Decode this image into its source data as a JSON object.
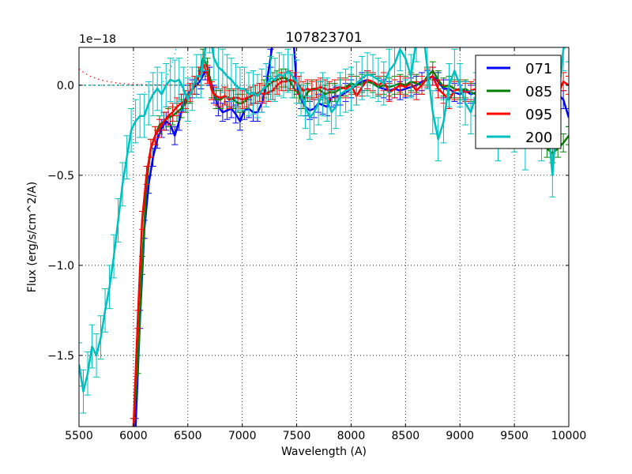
{
  "chart_data": {
    "type": "line",
    "title": "107823701",
    "xlabel": "Wavelength (A)",
    "ylabel": "Flux (erg/s/cm^2/A)",
    "y_offset_label": "1e−18",
    "xlim": [
      5500,
      10000
    ],
    "ylim": [
      -1.895,
      0.21
    ],
    "y_scale_factor": 1e-18,
    "grid": true,
    "legend_position": "upper right",
    "x_ticks": [
      5500,
      6000,
      6500,
      7000,
      7500,
      8000,
      8500,
      9000,
      9500,
      10000
    ],
    "x_tick_labels": [
      "5500",
      "6000",
      "6500",
      "7000",
      "7500",
      "8000",
      "8500",
      "9000",
      "9500",
      "10000"
    ],
    "y_ticks": [
      0.0,
      -0.5,
      -1.0,
      -1.5
    ],
    "y_tick_labels": [
      "0.0",
      "−0.5",
      "−1.0",
      "−1.5"
    ],
    "series": [
      {
        "name": "071",
        "color": "#0000ff",
        "x": [
          6020,
          6060,
          6100,
          6140,
          6180,
          6220,
          6260,
          6300,
          6340,
          6380,
          6420,
          6460,
          6500,
          6540,
          6580,
          6620,
          6660,
          6700,
          6740,
          6780,
          6820,
          6860,
          6900,
          6940,
          6980,
          7020,
          7060,
          7100,
          7140,
          7180,
          7220,
          7260,
          7300,
          7340,
          7380,
          7420,
          7460,
          7500,
          7540,
          7580,
          7620,
          7660,
          7700,
          7740,
          7780,
          7820,
          7860,
          7900,
          7950,
          8000,
          8050,
          8100,
          8150,
          8200,
          8250,
          8300,
          8350,
          8400,
          8450,
          8500,
          8550,
          8600,
          8650,
          8700,
          8750,
          8800,
          8850,
          8900,
          8950,
          9000,
          9050,
          9100,
          9150,
          9200,
          9250,
          9300,
          9350,
          9400,
          9450,
          9500,
          9550,
          9600,
          9650,
          9700,
          9750,
          9800,
          9850,
          9900,
          9950,
          10000
        ],
        "y": [
          -1.9,
          -1.3,
          -0.8,
          -0.55,
          -0.4,
          -0.3,
          -0.24,
          -0.2,
          -0.22,
          -0.28,
          -0.2,
          -0.1,
          -0.05,
          -0.02,
          0.0,
          0.03,
          0.08,
          0.05,
          -0.05,
          -0.12,
          -0.15,
          -0.14,
          -0.13,
          -0.16,
          -0.2,
          -0.14,
          -0.13,
          -0.15,
          -0.15,
          -0.1,
          0.0,
          0.15,
          0.35,
          0.6,
          0.75,
          0.6,
          0.35,
          0.0,
          -0.08,
          -0.12,
          -0.14,
          -0.13,
          -0.1,
          -0.11,
          -0.12,
          -0.07,
          -0.06,
          -0.06,
          -0.04,
          -0.02,
          0.0,
          0.02,
          0.03,
          0.01,
          -0.01,
          -0.02,
          -0.03,
          -0.02,
          -0.03,
          -0.02,
          -0.01,
          0.0,
          0.02,
          0.03,
          0.05,
          0.02,
          -0.02,
          -0.02,
          -0.04,
          -0.05,
          -0.03,
          -0.05,
          -0.04,
          -0.05,
          -0.06,
          -0.05,
          -0.08,
          -0.1,
          -0.06,
          -0.08,
          -0.05,
          -0.1,
          -0.07,
          -0.12,
          -0.05,
          -0.08,
          -0.03,
          -0.05,
          -0.08,
          -0.18
        ],
        "yerr": 0.05
      },
      {
        "name": "085",
        "color": "#008000",
        "x": [
          6000,
          6040,
          6080,
          6120,
          6160,
          6200,
          6240,
          6280,
          6320,
          6360,
          6400,
          6440,
          6480,
          6520,
          6560,
          6600,
          6640,
          6680,
          6720,
          6760,
          6800,
          6840,
          6880,
          6920,
          6960,
          7000,
          7040,
          7080,
          7120,
          7160,
          7200,
          7240,
          7280,
          7320,
          7360,
          7400,
          7440,
          7480,
          7520,
          7560,
          7600,
          7640,
          7680,
          7720,
          7760,
          7800,
          7850,
          7900,
          7950,
          8000,
          8050,
          8100,
          8150,
          8200,
          8250,
          8300,
          8350,
          8400,
          8450,
          8500,
          8550,
          8600,
          8650,
          8700,
          8750,
          8800,
          8850,
          8900,
          8950,
          9000,
          9050,
          9100,
          9150,
          9200,
          9250,
          9300,
          9350,
          9400,
          9450,
          9500,
          9550,
          9600,
          9650,
          9700,
          9750,
          9800,
          9850,
          9900,
          9950,
          10000
        ],
        "y": [
          -1.9,
          -1.55,
          -1.0,
          -0.55,
          -0.35,
          -0.28,
          -0.22,
          -0.2,
          -0.18,
          -0.17,
          -0.15,
          -0.13,
          -0.1,
          -0.05,
          0.0,
          0.05,
          0.15,
          0.1,
          -0.02,
          -0.08,
          -0.08,
          -0.06,
          -0.07,
          -0.08,
          -0.1,
          -0.1,
          -0.08,
          -0.06,
          -0.05,
          -0.04,
          -0.02,
          0.0,
          0.02,
          0.03,
          0.04,
          0.04,
          0.02,
          -0.02,
          -0.05,
          -0.08,
          -0.04,
          -0.02,
          -0.02,
          -0.03,
          -0.05,
          -0.04,
          -0.04,
          -0.02,
          -0.01,
          0.01,
          0.0,
          0.01,
          0.02,
          0.01,
          -0.01,
          0.0,
          -0.01,
          0.0,
          0.01,
          0.0,
          0.02,
          0.01,
          0.0,
          0.05,
          0.08,
          0.03,
          -0.01,
          0.0,
          -0.02,
          -0.03,
          -0.02,
          -0.04,
          -0.05,
          -0.05,
          -0.06,
          -0.04,
          -0.07,
          -0.08,
          -0.1,
          -0.12,
          -0.1,
          -0.15,
          -0.2,
          -0.22,
          -0.3,
          -0.35,
          -0.38,
          -0.35,
          -0.32,
          -0.28
        ],
        "yerr": 0.05
      },
      {
        "name": "095",
        "color": "#ff0000",
        "x": [
          6000,
          6040,
          6080,
          6120,
          6160,
          6200,
          6240,
          6280,
          6320,
          6360,
          6400,
          6440,
          6480,
          6520,
          6560,
          6600,
          6640,
          6680,
          6720,
          6760,
          6800,
          6840,
          6880,
          6920,
          6960,
          7000,
          7040,
          7080,
          7120,
          7160,
          7200,
          7240,
          7280,
          7320,
          7360,
          7400,
          7440,
          7480,
          7520,
          7560,
          7600,
          7640,
          7680,
          7720,
          7760,
          7800,
          7850,
          7900,
          7950,
          8000,
          8050,
          8100,
          8150,
          8200,
          8250,
          8300,
          8350,
          8400,
          8450,
          8500,
          8550,
          8600,
          8650,
          8700,
          8750,
          8800,
          8850,
          8900,
          8950,
          9000,
          9050,
          9100,
          9150,
          9200,
          9250,
          9300,
          9350,
          9400,
          9450,
          9500,
          9550,
          9600,
          9650,
          9700,
          9750,
          9800,
          9850,
          9900,
          9950,
          10000
        ],
        "y": [
          -1.9,
          -1.3,
          -0.75,
          -0.5,
          -0.35,
          -0.28,
          -0.24,
          -0.2,
          -0.17,
          -0.15,
          -0.12,
          -0.1,
          -0.08,
          -0.04,
          0.0,
          0.05,
          0.12,
          0.06,
          -0.03,
          -0.06,
          -0.07,
          -0.06,
          -0.08,
          -0.07,
          -0.07,
          -0.08,
          -0.07,
          -0.06,
          -0.05,
          -0.04,
          -0.05,
          -0.04,
          -0.03,
          0.0,
          0.02,
          0.02,
          0.03,
          0.02,
          0.0,
          -0.03,
          -0.02,
          -0.03,
          -0.02,
          -0.01,
          -0.02,
          -0.03,
          -0.02,
          -0.01,
          -0.02,
          0.0,
          -0.06,
          -0.01,
          0.03,
          0.02,
          0.0,
          0.02,
          -0.04,
          -0.02,
          0.0,
          -0.01,
          0.01,
          -0.03,
          0.0,
          0.04,
          0.05,
          -0.02,
          -0.05,
          -0.08,
          -0.03,
          -0.02,
          -0.04,
          -0.03,
          -0.02,
          -0.05,
          -0.06,
          -0.03,
          -0.05,
          -0.02,
          -0.03,
          -0.04,
          -0.05,
          -0.06,
          -0.04,
          -0.08,
          -0.05,
          -0.07,
          -0.04,
          -0.05,
          0.02,
          0.0
        ],
        "yerr": 0.05
      },
      {
        "name": "200",
        "color": "#00bfbf",
        "x": [
          5500,
          5540,
          5580,
          5620,
          5660,
          5700,
          5740,
          5780,
          5820,
          5860,
          5900,
          5940,
          5980,
          6020,
          6060,
          6100,
          6140,
          6180,
          6220,
          6260,
          6300,
          6340,
          6380,
          6420,
          6460,
          6500,
          6540,
          6580,
          6620,
          6660,
          6700,
          6740,
          6780,
          6820,
          6860,
          6900,
          6940,
          6980,
          7020,
          7060,
          7100,
          7140,
          7180,
          7220,
          7260,
          7300,
          7340,
          7380,
          7420,
          7460,
          7500,
          7540,
          7580,
          7620,
          7660,
          7700,
          7740,
          7780,
          7820,
          7860,
          7900,
          7950,
          8000,
          8050,
          8100,
          8150,
          8200,
          8250,
          8300,
          8350,
          8400,
          8450,
          8500,
          8550,
          8600,
          8650,
          8700,
          8750,
          8800,
          8850,
          8900,
          8950,
          9000,
          9050,
          9100,
          9150,
          9200,
          9250,
          9300,
          9350,
          9400,
          9450,
          9500,
          9550,
          9600,
          9650,
          9700,
          9750,
          9800,
          9850,
          9900,
          9950,
          10000
        ],
        "y": [
          -1.55,
          -1.7,
          -1.6,
          -1.45,
          -1.5,
          -1.4,
          -1.25,
          -1.12,
          -0.95,
          -0.75,
          -0.55,
          -0.4,
          -0.25,
          -0.2,
          -0.17,
          -0.17,
          -0.1,
          -0.05,
          -0.02,
          -0.05,
          0.0,
          0.03,
          0.02,
          0.03,
          -0.02,
          -0.08,
          -0.02,
          0.05,
          0.05,
          0.2,
          0.3,
          0.15,
          0.1,
          0.08,
          0.05,
          0.03,
          0.0,
          -0.02,
          -0.02,
          -0.05,
          -0.04,
          -0.06,
          -0.03,
          0.0,
          0.04,
          0.03,
          0.06,
          0.05,
          0.08,
          0.05,
          0.02,
          -0.05,
          -0.12,
          -0.18,
          -0.15,
          -0.1,
          -0.05,
          -0.08,
          -0.15,
          -0.12,
          -0.05,
          -0.03,
          -0.02,
          0.01,
          0.04,
          0.06,
          0.05,
          0.03,
          0.01,
          0.08,
          0.12,
          0.2,
          0.15,
          0.05,
          0.25,
          0.35,
          0.1,
          -0.15,
          -0.3,
          -0.2,
          0.0,
          0.08,
          0.0,
          -0.1,
          -0.15,
          -0.05,
          -0.2,
          -0.1,
          -0.15,
          -0.3,
          -0.1,
          -0.2,
          -0.25,
          -0.15,
          -0.35,
          -0.1,
          -0.2,
          -0.3,
          -0.15,
          -0.5,
          -0.1,
          0.2,
          0.25
        ],
        "yerr": 0.12
      }
    ],
    "reference_lines": [
      {
        "style": "dotted",
        "color": "#ff0000",
        "description": "decaying curve near left edge approaching 0"
      },
      {
        "style": "dotted",
        "color": "#00bfbf",
        "description": "rising curve near 6200-6350"
      },
      {
        "style": "dashed",
        "color": "#008080",
        "description": "zero line from 5500 to ~6600"
      }
    ]
  },
  "legend": {
    "items": [
      {
        "label": "071",
        "color": "#0000ff"
      },
      {
        "label": "085",
        "color": "#008000"
      },
      {
        "label": "095",
        "color": "#ff0000"
      },
      {
        "label": "200",
        "color": "#00bfbf"
      }
    ]
  }
}
